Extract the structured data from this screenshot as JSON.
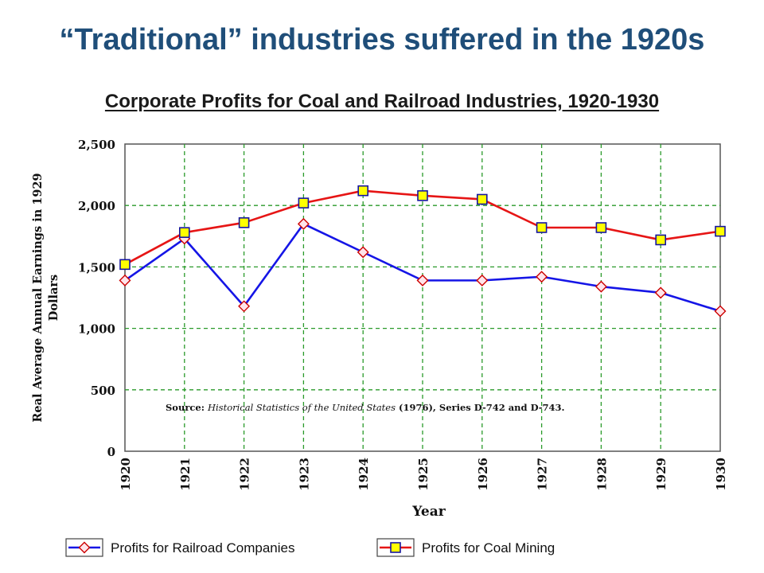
{
  "slide": {
    "title": "“Traditional” industries suffered in the 1920s"
  },
  "chart_data": {
    "type": "line",
    "title": "Corporate Profits for Coal and Railroad Industries, 1920-1930",
    "xlabel": "Year",
    "ylabel": "Real Average Annual Earnings in 1929 Dollars",
    "categories": [
      "1920",
      "1921",
      "1922",
      "1923",
      "1924",
      "1925",
      "1926",
      "1927",
      "1928",
      "1929",
      "1930"
    ],
    "yticks": [
      "0",
      "500",
      "1,000",
      "1,500",
      "2,000",
      "2,500"
    ],
    "ylim": [
      0,
      2500
    ],
    "grid": true,
    "legend_placement": "bottom",
    "annotation": {
      "prefix": "Source: ",
      "italic": "Historical Statistics of the United States",
      "suffix": " (1976), Series D-742 and D-743."
    },
    "series": [
      {
        "name": "Profits for Railroad Companies",
        "color": "#1515e6",
        "marker": "diamond",
        "marker_fill": "#ffe4ea",
        "marker_stroke": "#cc0000",
        "values": [
          1390,
          1730,
          1180,
          1850,
          1620,
          1390,
          1390,
          1420,
          1340,
          1290,
          1140
        ]
      },
      {
        "name": "Profits for Coal Mining",
        "color": "#e61515",
        "marker": "square",
        "marker_fill": "#ffff00",
        "marker_stroke": "#1515a0",
        "values": [
          1520,
          1780,
          1860,
          2020,
          2120,
          2080,
          2050,
          1820,
          1820,
          1720,
          1790
        ]
      }
    ]
  }
}
